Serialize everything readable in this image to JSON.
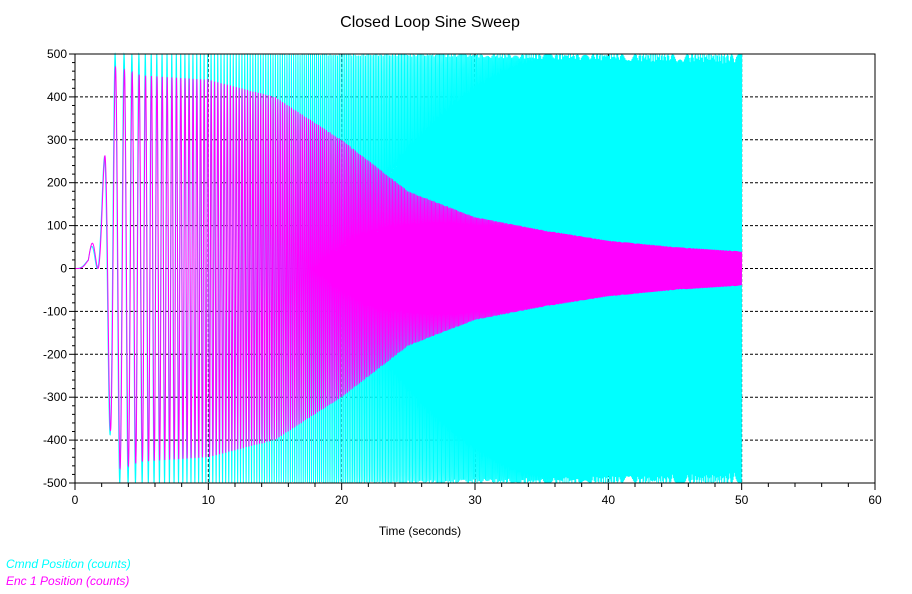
{
  "chart_data": {
    "type": "line",
    "title": "Closed Loop Sine Sweep",
    "xlabel": "Time (seconds)",
    "ylabel": "",
    "xlim": [
      0,
      60
    ],
    "ylim": [
      -500,
      500
    ],
    "x_ticks": [
      0,
      10,
      20,
      30,
      40,
      50,
      60
    ],
    "y_ticks": [
      -500,
      -400,
      -300,
      -200,
      -100,
      0,
      100,
      200,
      300,
      400,
      500
    ],
    "grid": true,
    "legend_position": "bottom-left",
    "series": [
      {
        "name": "Cmnd Position (counts)",
        "color": "#00ffff",
        "envelope": {
          "t": [
            0,
            1,
            2,
            3,
            4,
            10,
            15,
            20,
            25,
            30,
            35,
            40,
            45,
            50
          ],
          "amplitude": [
            0,
            20,
            200,
            500,
            500,
            500,
            500,
            500,
            500,
            500,
            500,
            500,
            500,
            500
          ]
        },
        "t_end": 50,
        "sweep_start_hz": 0.3,
        "sweep_end_hz": 18
      },
      {
        "name": "Enc 1 Position (counts)",
        "color": "#ff00ff",
        "envelope": {
          "t": [
            0,
            1,
            2,
            3,
            5,
            10,
            15,
            20,
            25,
            30,
            35,
            40,
            45,
            50
          ],
          "amplitude": [
            0,
            20,
            200,
            470,
            450,
            440,
            400,
            300,
            180,
            120,
            90,
            65,
            50,
            40
          ]
        },
        "t_end": 50,
        "sweep_start_hz": 0.3,
        "sweep_end_hz": 18
      }
    ]
  }
}
